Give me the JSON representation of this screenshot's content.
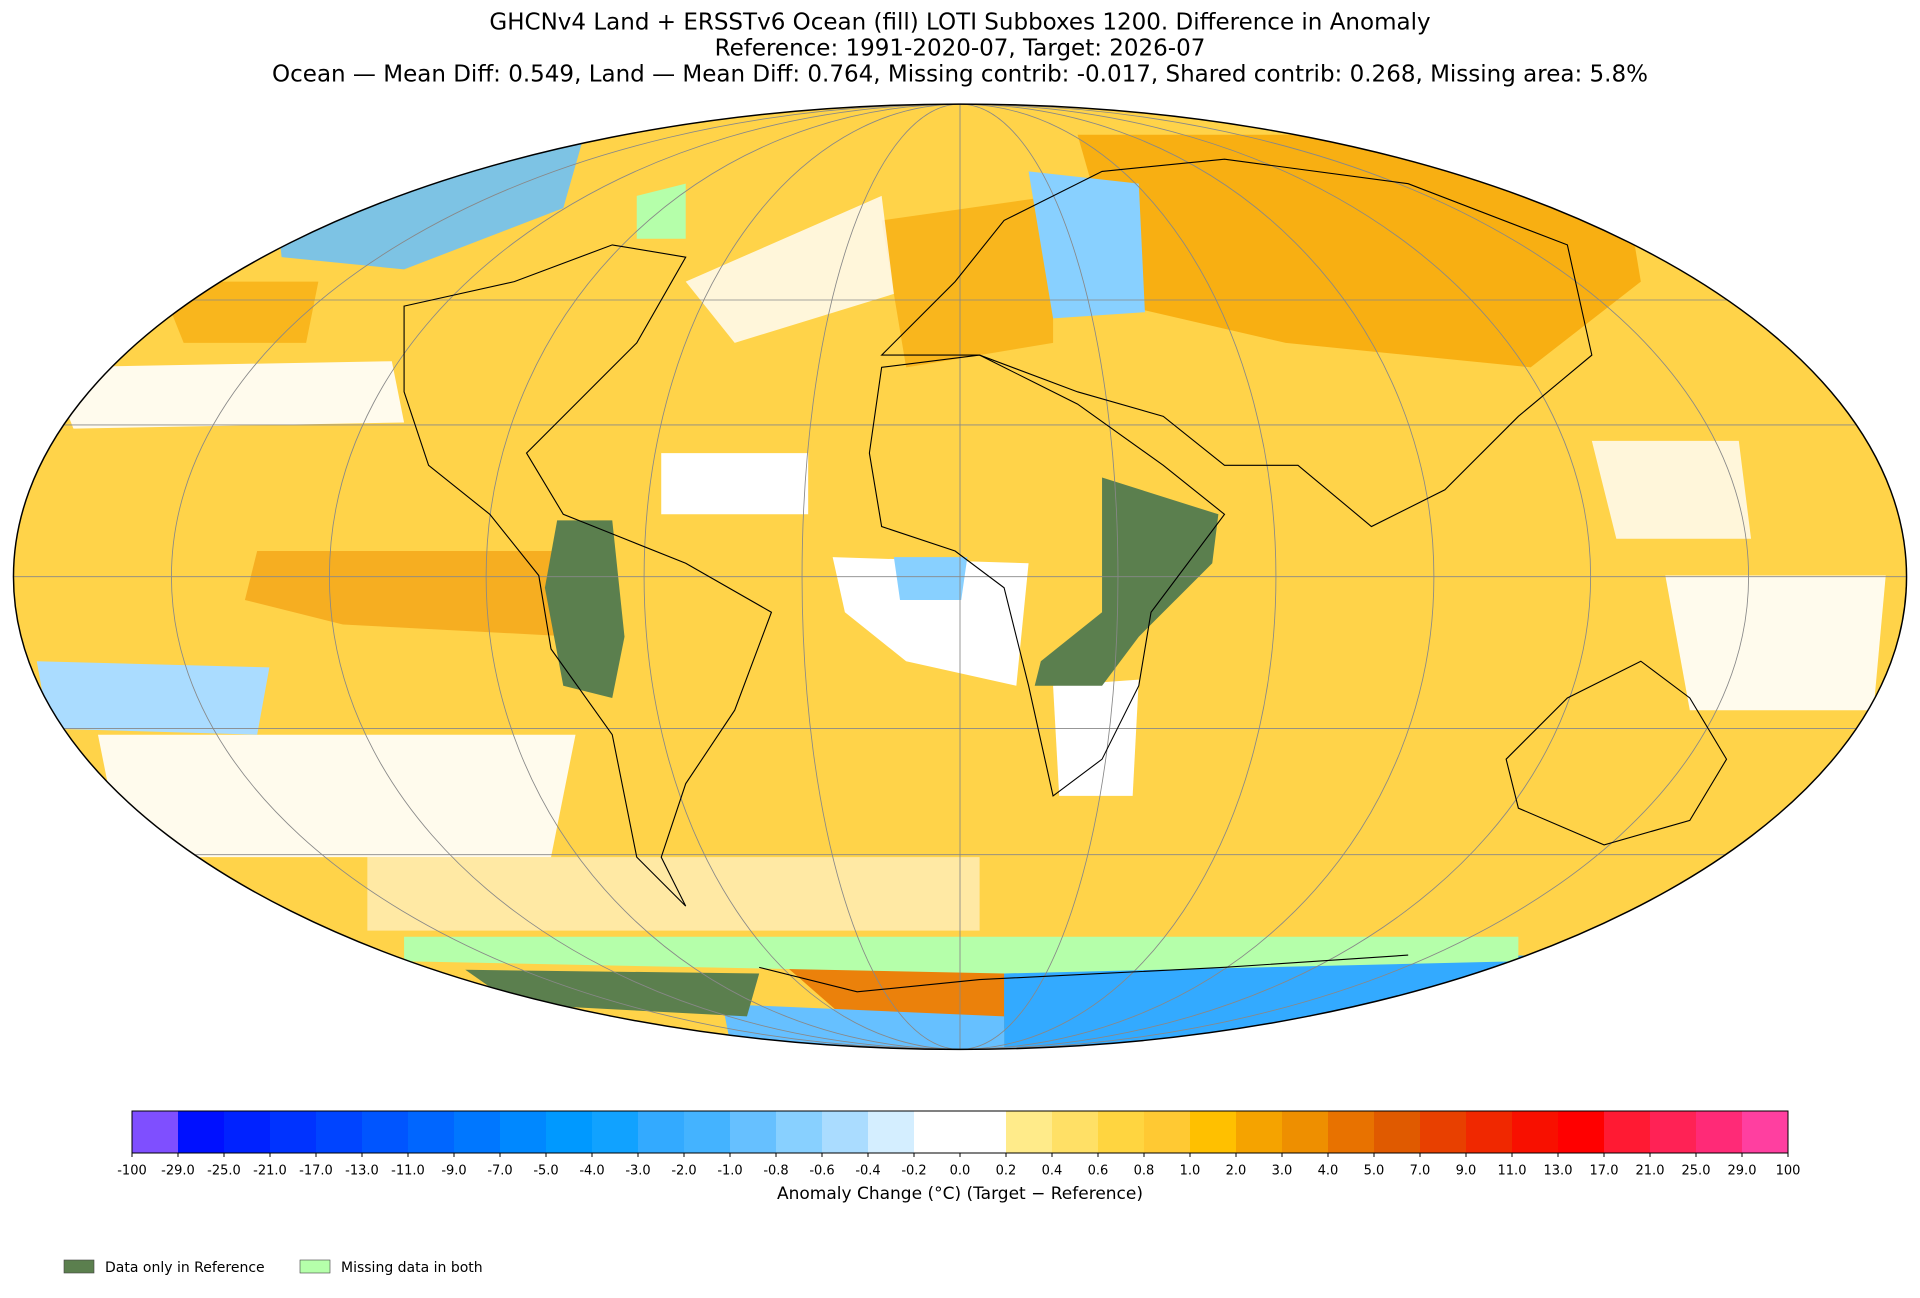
{
  "header": {
    "title": "GHCNv4 Land + ERSSTv6 Ocean (fill) LOTI Subboxes 1200. Difference in Anomaly",
    "subtitle": "Reference: 1991-2020-07, Target: 2026-07",
    "stats": "Ocean — Mean Diff: 0.549, Land — Mean Diff: 0.764, Missing contrib: -0.017, Shared contrib: 0.268, Missing area: 5.8%"
  },
  "colorbar": {
    "ticks": [
      "-100",
      "-29.0",
      "-25.0",
      "-21.0",
      "-17.0",
      "-13.0",
      "-11.0",
      "-9.0",
      "-7.0",
      "-5.0",
      "-4.0",
      "-3.0",
      "-2.0",
      "-1.0",
      "-0.8",
      "-0.6",
      "-0.4",
      "-0.2",
      "0.0",
      "0.2",
      "0.4",
      "0.6",
      "0.8",
      "1.0",
      "2.0",
      "3.0",
      "4.0",
      "5.0",
      "7.0",
      "9.0",
      "11.0",
      "13.0",
      "17.0",
      "21.0",
      "25.0",
      "29.0",
      "100"
    ],
    "colors": [
      "#7f4fff",
      "#0010ff",
      "#0022ff",
      "#0033ff",
      "#0044ff",
      "#0055ff",
      "#0066ff",
      "#0077ff",
      "#0088ff",
      "#0099ff",
      "#11a2ff",
      "#33aaff",
      "#44b3ff",
      "#66c0ff",
      "#88d0ff",
      "#aadcff",
      "#d4eeff",
      "#ffffff",
      "#ffffff",
      "#ffeb8a",
      "#ffe066",
      "#ffd540",
      "#ffc933",
      "#ffc000",
      "#f5a300",
      "#ee8f00",
      "#e87200",
      "#e05a00",
      "#e84000",
      "#f02800",
      "#f81000",
      "#ff0000",
      "#ff1a33",
      "#ff2255",
      "#ff2a77",
      "#ff3fa0"
    ],
    "label": "Anomaly Change (°C) (Target − Reference)"
  },
  "legend": [
    {
      "label": "Data only in Reference",
      "color": "#5b7f4e"
    },
    {
      "label": "Missing data in both",
      "color": "#b5ffaa"
    }
  ]
}
